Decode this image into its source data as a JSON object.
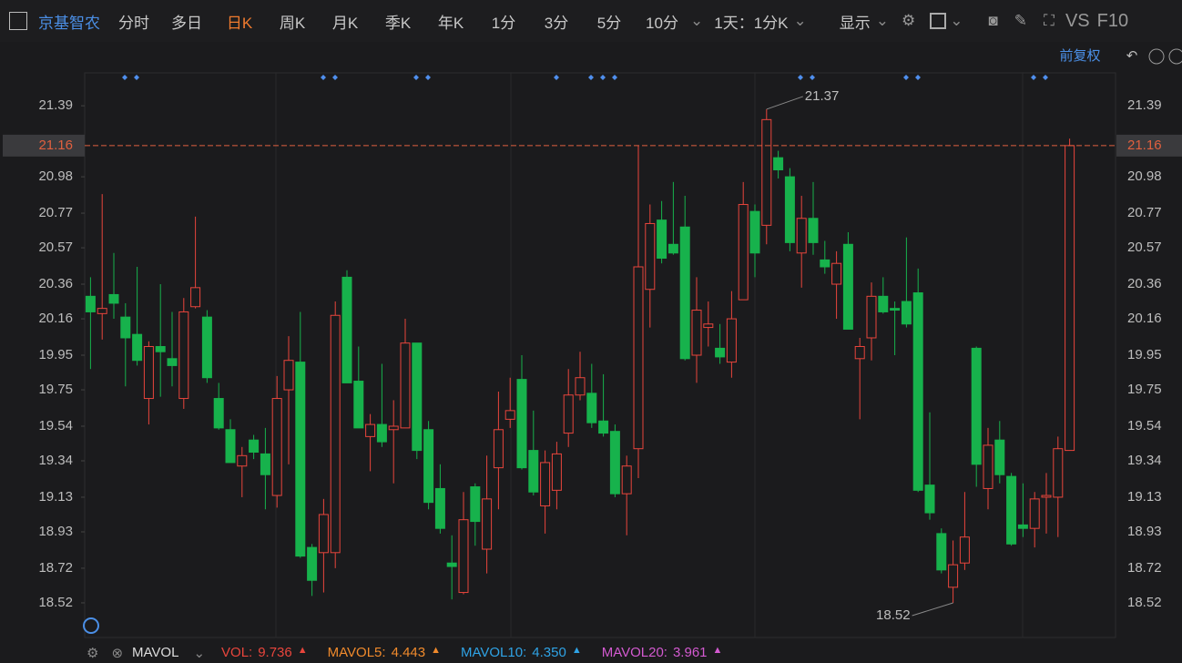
{
  "toolbar": {
    "stock_name": "京基智农",
    "tabs": [
      {
        "label": "分时"
      },
      {
        "label": "多日"
      },
      {
        "label": "日K",
        "active": true
      },
      {
        "label": "周K"
      },
      {
        "label": "月K"
      },
      {
        "label": "季K"
      },
      {
        "label": "年K"
      },
      {
        "label": "1分"
      },
      {
        "label": "3分"
      },
      {
        "label": "5分"
      },
      {
        "label": "10分"
      }
    ],
    "period": "1天：1分K",
    "display": "显示",
    "vs": "VS",
    "f10": "F10",
    "adjust": "前复权"
  },
  "chart_data": {
    "type": "candlestick",
    "open": [
      20.29,
      20.19,
      20.3,
      20.17,
      20.07,
      19.7,
      20.0,
      19.93,
      19.7,
      20.23,
      20.17,
      19.7,
      19.52,
      19.31,
      19.46,
      19.38,
      19.14,
      19.75,
      19.91,
      18.84,
      18.81,
      18.81,
      20.4,
      19.8,
      19.48,
      19.55,
      19.52,
      19.53,
      20.02,
      19.52,
      19.18,
      18.75,
      18.58,
      19.19,
      18.83,
      19.3,
      19.58,
      19.81,
      19.4,
      19.08,
      19.17,
      19.5,
      19.72,
      19.73,
      19.57,
      19.51,
      19.15,
      19.41,
      20.33,
      20.73,
      20.59,
      20.69,
      19.95,
      20.11,
      19.99,
      19.91,
      20.27,
      20.78,
      20.7,
      21.09,
      20.98,
      20.54,
      20.74,
      20.5,
      20.36,
      20.59,
      19.93,
      20.05,
      20.29,
      20.22,
      20.26,
      20.31,
      19.2,
      18.92,
      18.61,
      18.75,
      19.99,
      19.18,
      19.46,
      19.25,
      18.97,
      18.95,
      19.13,
      19.13,
      19.4
    ],
    "high": [
      20.4,
      20.88,
      20.54,
      20.25,
      20.46,
      20.03,
      20.36,
      20.2,
      20.28,
      20.75,
      20.21,
      19.79,
      19.58,
      19.42,
      19.49,
      19.53,
      19.83,
      20.06,
      20.2,
      18.86,
      19.12,
      20.26,
      20.44,
      20.0,
      19.61,
      19.9,
      19.69,
      20.16,
      20.02,
      19.57,
      19.32,
      18.91,
      19.16,
      19.21,
      19.37,
      19.74,
      19.82,
      19.95,
      19.63,
      19.4,
      19.45,
      19.87,
      19.97,
      19.9,
      19.84,
      19.55,
      19.37,
      21.16,
      20.82,
      20.84,
      20.95,
      20.87,
      20.4,
      20.26,
      20.13,
      20.32,
      20.95,
      20.82,
      21.37,
      21.13,
      21.03,
      20.87,
      20.95,
      20.61,
      20.55,
      20.66,
      20.05,
      20.37,
      20.4,
      20.26,
      20.63,
      20.45,
      19.62,
      18.95,
      18.88,
      19.16,
      20.0,
      19.53,
      19.57,
      19.27,
      19.21,
      19.16,
      19.27,
      19.48,
      21.2
    ],
    "low": [
      19.87,
      20.04,
      20.16,
      19.77,
      19.89,
      19.55,
      19.71,
      19.77,
      19.64,
      20.22,
      19.79,
      19.52,
      19.33,
      19.13,
      19.35,
      19.06,
      19.07,
      19.32,
      18.78,
      18.56,
      18.58,
      18.72,
      19.79,
      19.53,
      19.28,
      19.42,
      19.21,
      19.53,
      19.35,
      19.06,
      18.92,
      18.54,
      18.57,
      18.85,
      18.69,
      19.06,
      19.53,
      19.29,
      19.14,
      18.92,
      19.06,
      19.42,
      19.69,
      19.53,
      19.48,
      19.13,
      18.91,
      19.24,
      20.11,
      20.48,
      20.53,
      19.92,
      19.79,
      20.0,
      19.9,
      19.82,
      20.27,
      20.4,
      20.59,
      20.97,
      20.55,
      20.34,
      20.53,
      20.42,
      20.16,
      20.1,
      19.58,
      19.92,
      20.19,
      19.95,
      20.11,
      19.16,
      19.0,
      18.69,
      18.52,
      18.71,
      19.19,
      19.06,
      19.21,
      18.85,
      18.9,
      18.84,
      18.92,
      18.9,
      19.4
    ],
    "close": [
      20.2,
      20.22,
      20.25,
      20.05,
      19.92,
      20.0,
      19.97,
      19.89,
      20.2,
      20.34,
      19.82,
      19.53,
      19.33,
      19.37,
      19.39,
      19.26,
      19.7,
      19.92,
      18.79,
      18.65,
      19.03,
      20.18,
      19.79,
      19.53,
      19.55,
      19.45,
      19.54,
      20.02,
      19.4,
      19.1,
      18.95,
      18.73,
      19.0,
      18.99,
      19.12,
      19.52,
      19.63,
      19.3,
      19.16,
      19.33,
      19.38,
      19.72,
      19.82,
      19.56,
      19.5,
      19.15,
      19.31,
      20.46,
      20.71,
      20.51,
      20.54,
      19.93,
      20.21,
      20.13,
      19.94,
      20.16,
      20.82,
      20.54,
      21.31,
      21.02,
      20.6,
      20.74,
      20.6,
      20.46,
      20.48,
      20.1,
      20.0,
      20.29,
      20.2,
      20.21,
      20.13,
      19.17,
      19.04,
      18.71,
      18.74,
      18.9,
      19.32,
      19.43,
      19.26,
      18.86,
      18.95,
      19.12,
      19.14,
      19.41,
      21.16
    ],
    "ylim": [
      18.32,
      21.58
    ],
    "yticks": [
      18.52,
      18.72,
      18.93,
      19.13,
      19.34,
      19.54,
      19.75,
      19.95,
      20.16,
      20.36,
      20.57,
      20.77,
      20.98,
      21.39
    ],
    "last_price": 21.16,
    "annotations": [
      {
        "label": "21.37",
        "value": 21.37
      },
      {
        "label": "18.52",
        "value": 18.52
      }
    ],
    "up_color": "#e8453c",
    "down_color": "#17b24c",
    "last_price_color": "#e0603f"
  },
  "indicator_bar": {
    "indicator": "MAVOL",
    "items": [
      {
        "name": "VOL:",
        "value": 9.736,
        "color": "#e8453c"
      },
      {
        "name": "MAVOL5:",
        "value": 4.443,
        "color": "#f08a2c"
      },
      {
        "name": "MAVOL10:",
        "value": 4.35,
        "value_label": "4.350",
        "color": "#2fa3e6"
      },
      {
        "name": "MAVOL20:",
        "value": 3.961,
        "color": "#d35ad0"
      }
    ]
  }
}
